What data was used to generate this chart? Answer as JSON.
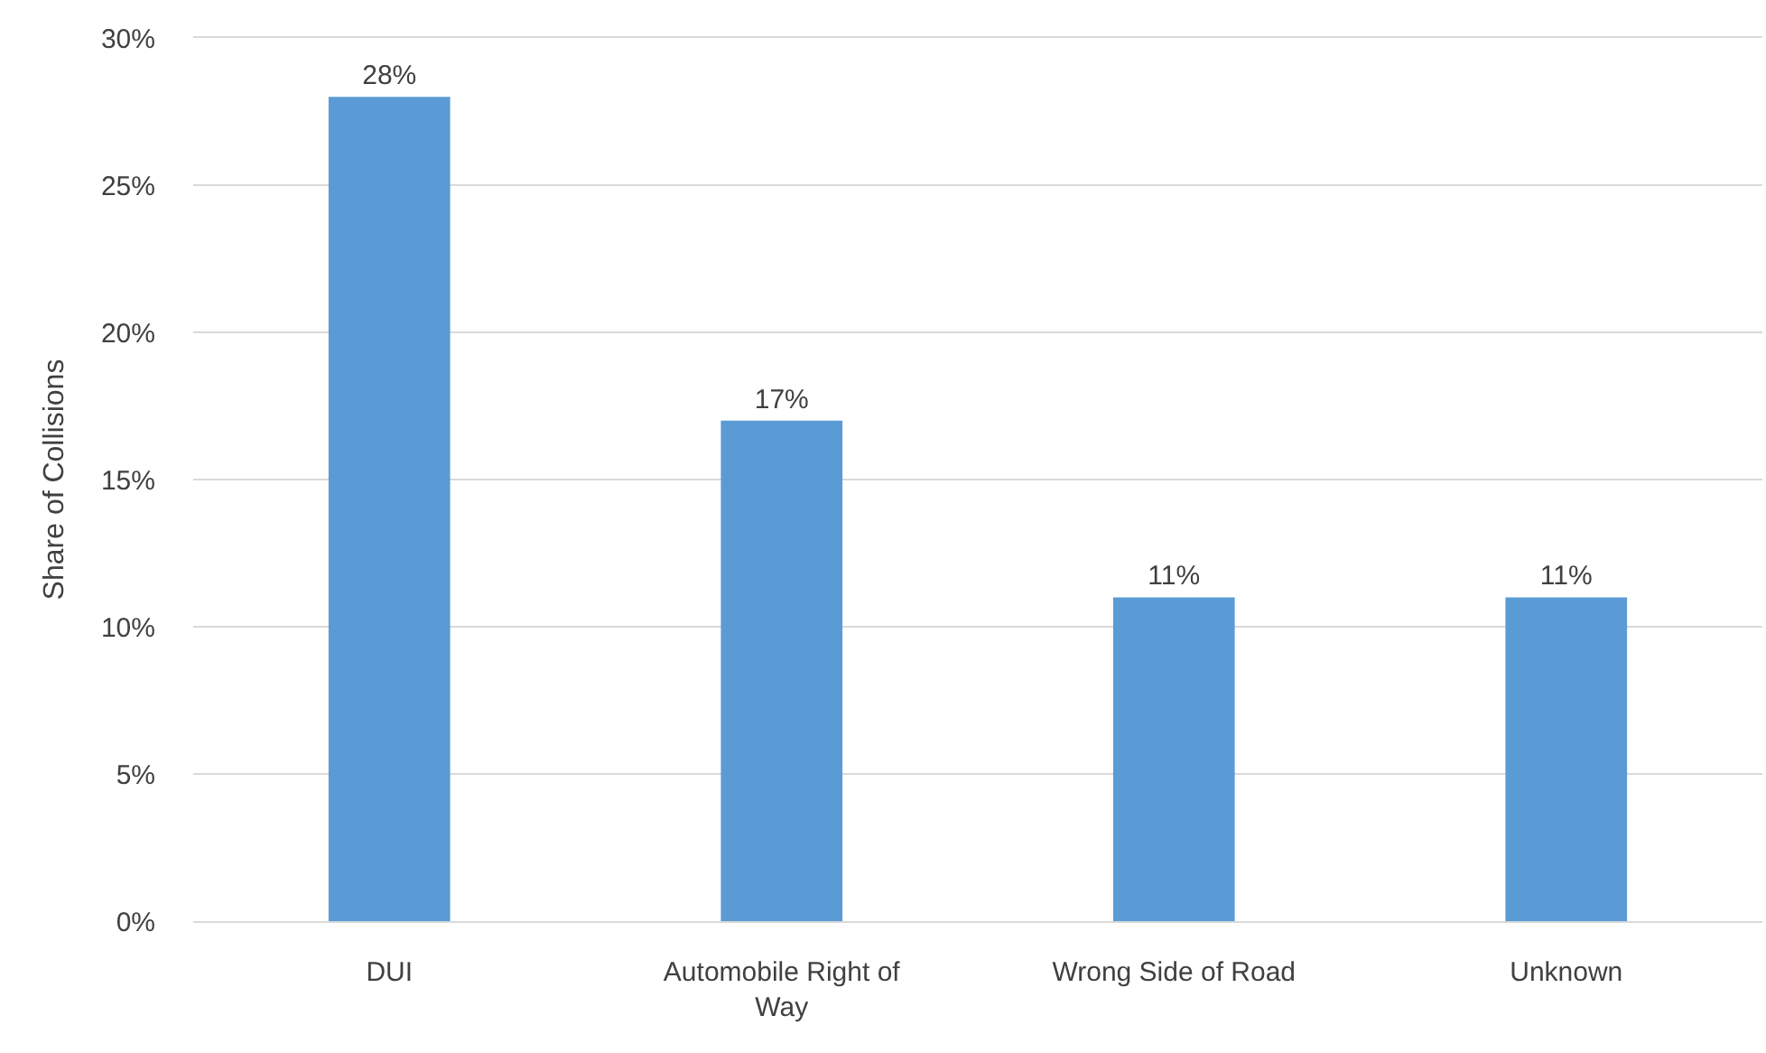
{
  "chart_data": {
    "type": "bar",
    "ylabel": "Share of Collisions",
    "categories": [
      "DUI",
      "Automobile Right of Way",
      "Wrong Side of Road",
      "Unknown"
    ],
    "values": [
      28,
      17,
      11,
      11
    ],
    "value_labels": [
      "28%",
      "17%",
      "11%",
      "11%"
    ],
    "color": "#5b9bd5",
    "ylim": [
      0,
      30
    ],
    "yticks": [
      {
        "value": 0,
        "label": "0%"
      },
      {
        "value": 5,
        "label": "5%"
      },
      {
        "value": 10,
        "label": "10%"
      },
      {
        "value": 15,
        "label": "15%"
      },
      {
        "value": 20,
        "label": "20%"
      },
      {
        "value": 25,
        "label": "25%"
      },
      {
        "value": 30,
        "label": "30%"
      }
    ],
    "grid": "y"
  }
}
